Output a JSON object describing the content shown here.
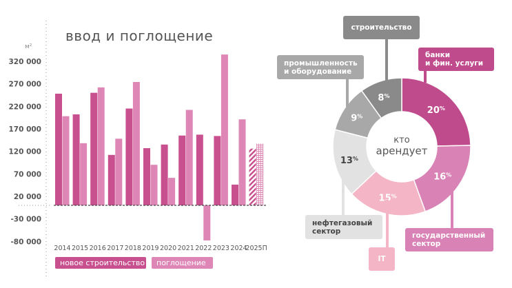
{
  "chart_data": [
    {
      "type": "bar",
      "title": "ввод и поглощение",
      "ylabel": "м²",
      "ylim": [
        -80000,
        340000
      ],
      "yticks": [
        320000,
        270000,
        220000,
        170000,
        120000,
        70000,
        20000,
        -30000,
        -80000
      ],
      "ytick_labels": [
        "320 000",
        "270 000",
        "220 000",
        "170 000",
        "120 000",
        "70 000",
        "20 000",
        "-30 000",
        "-80 000"
      ],
      "categories": [
        "2014",
        "2015",
        "2016",
        "2017",
        "2018",
        "2019",
        "2020",
        "2021",
        "2022",
        "2023",
        "2024",
        "2025П"
      ],
      "series": [
        {
          "name": "новое строительство",
          "color": "#c9508f",
          "values": [
            248000,
            202000,
            250000,
            112000,
            215000,
            127000,
            135000,
            155000,
            157000,
            154000,
            46000,
            126000
          ]
        },
        {
          "name": "поглощение",
          "color": "#de86b6",
          "values": [
            198000,
            138000,
            262000,
            148000,
            274000,
            90000,
            61000,
            212000,
            -78000,
            335000,
            191000,
            137000
          ]
        }
      ],
      "forecast_category": "2025П",
      "legend": "bottom-left"
    },
    {
      "type": "pie",
      "title": "кто арендует",
      "slices": [
        {
          "label": "банки и фин. услуги",
          "line1": "банки",
          "line2": "и фин. услуги",
          "value": 20,
          "color": "#c04b8c",
          "text_color": "#fff"
        },
        {
          "label": "государственный сектор",
          "line1": "государственный",
          "line2": "сектор",
          "value": 16,
          "color": "#d982b5",
          "text_color": "#fff"
        },
        {
          "label": "IT",
          "line1": "IT",
          "line2": "",
          "value": 15,
          "color": "#f4b5c6",
          "text_color": "#fff"
        },
        {
          "label": "нефтегазовый сектор",
          "line1": "нефтегазовый",
          "line2": "сектор",
          "value": 13,
          "color": "#e2e2e2",
          "text_color": "#444"
        },
        {
          "label": "промышленность и оборудование",
          "line1": "промышленность",
          "line2": "и оборудование",
          "value": 9,
          "color": "#a8a8a8",
          "text_color": "#fff"
        },
        {
          "label": "строительство",
          "line1": "строительство",
          "line2": "",
          "value": 8,
          "color": "#8a8a8a",
          "text_color": "#fff"
        }
      ],
      "pct_sign": "%"
    }
  ]
}
